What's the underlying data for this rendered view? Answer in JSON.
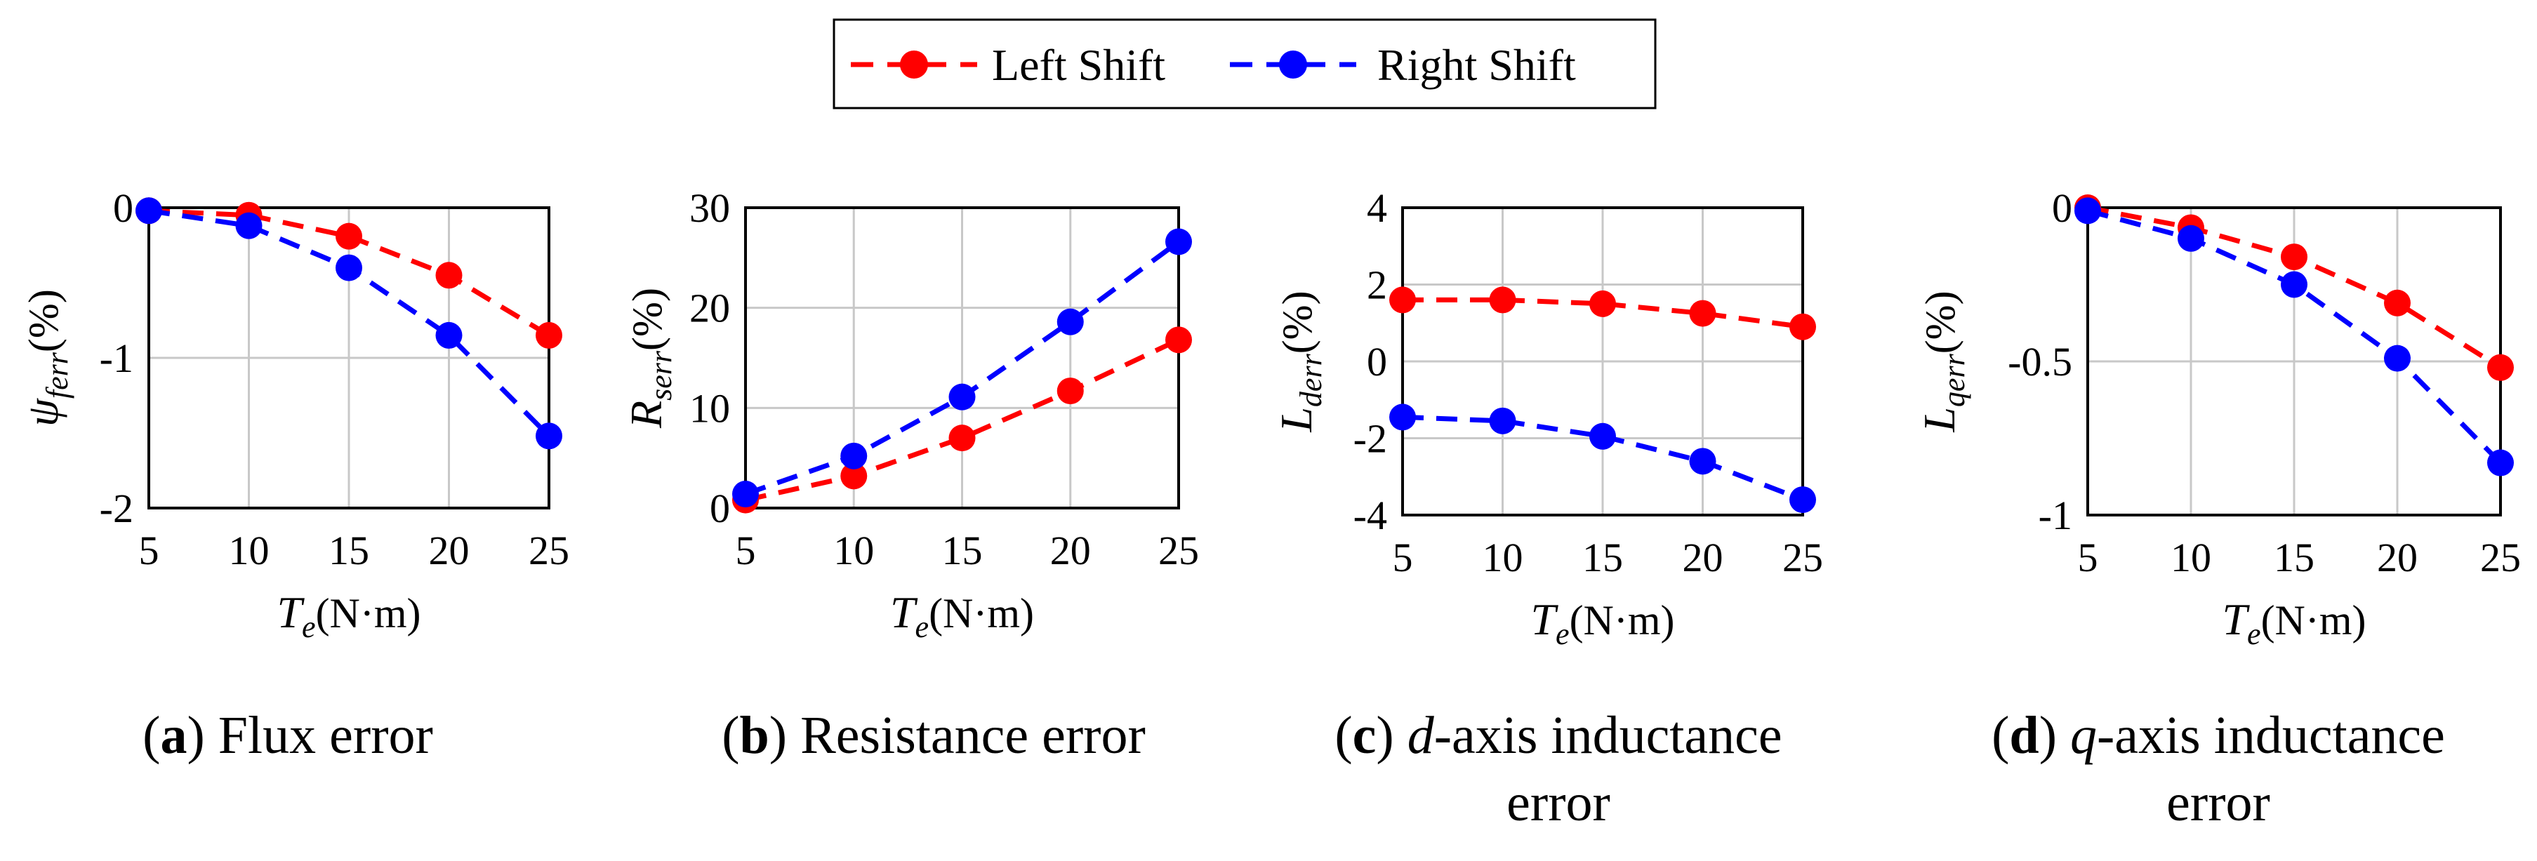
{
  "colors": {
    "left": "#ff0000",
    "right": "#0000ff",
    "grid": "#c8c8c8",
    "axis": "#000000"
  },
  "legend": {
    "left": "Left Shift",
    "right": "Right Shift"
  },
  "captions": [
    {
      "letter": "a",
      "pre": "",
      "ital": "",
      "text": "Flux error",
      "line2": ""
    },
    {
      "letter": "b",
      "pre": "",
      "ital": "",
      "text": "Resistance error",
      "line2": ""
    },
    {
      "letter": "c",
      "pre": "",
      "ital": "d",
      "text": "-axis inductance",
      "line2": "error"
    },
    {
      "letter": "d",
      "pre": "",
      "ital": "q",
      "text": "-axis inductance",
      "line2": "error"
    }
  ],
  "chart_data": [
    {
      "type": "line",
      "title": "Flux error",
      "xlabel_var": "T",
      "xlabel_sub": "e",
      "xlabel_unit": "(N·m)",
      "ylabel_var": "ψ",
      "ylabel_sub": "ferr",
      "ylabel_unit": "(%)",
      "x": [
        5,
        10,
        15,
        20,
        25
      ],
      "xticks": [
        "5",
        "10",
        "15",
        "20",
        "25"
      ],
      "ylim": [
        -2,
        0
      ],
      "yticks": [
        -2,
        -1,
        0
      ],
      "yticklabels": [
        "-2",
        "-1",
        "0"
      ],
      "series": [
        {
          "name": "Left Shift",
          "values": [
            -0.02,
            -0.05,
            -0.19,
            -0.45,
            -0.85
          ]
        },
        {
          "name": "Right Shift",
          "values": [
            -0.02,
            -0.12,
            -0.4,
            -0.85,
            -1.52
          ]
        }
      ]
    },
    {
      "type": "line",
      "title": "Resistance error",
      "xlabel_var": "T",
      "xlabel_sub": "e",
      "xlabel_unit": "(N·m)",
      "ylabel_var": "R",
      "ylabel_sub": "serr",
      "ylabel_unit": "(%)",
      "x": [
        5,
        10,
        15,
        20,
        25
      ],
      "xticks": [
        "5",
        "10",
        "15",
        "20",
        "25"
      ],
      "ylim": [
        0,
        30
      ],
      "yticks": [
        0,
        10,
        20,
        30
      ],
      "yticklabels": [
        "0",
        "10",
        "20",
        "30"
      ],
      "series": [
        {
          "name": "Left Shift",
          "values": [
            0.8,
            3.2,
            7.0,
            11.7,
            16.8
          ]
        },
        {
          "name": "Right Shift",
          "values": [
            1.4,
            5.2,
            11.1,
            18.6,
            26.6
          ]
        }
      ]
    },
    {
      "type": "line",
      "title": "d-axis inductance error",
      "xlabel_var": "T",
      "xlabel_sub": "e",
      "xlabel_unit": "(N·m)",
      "ylabel_var": "L",
      "ylabel_sub": "derr",
      "ylabel_unit": "(%)",
      "x": [
        5,
        10,
        15,
        20,
        25
      ],
      "xticks": [
        "5",
        "10",
        "15",
        "20",
        "25"
      ],
      "ylim": [
        -4,
        4
      ],
      "yticks": [
        -4,
        -2,
        0,
        2,
        4
      ],
      "yticklabels": [
        "-4",
        "-2",
        "0",
        "2",
        "4"
      ],
      "series": [
        {
          "name": "Left Shift",
          "values": [
            1.6,
            1.6,
            1.5,
            1.25,
            0.9
          ]
        },
        {
          "name": "Right Shift",
          "values": [
            -1.45,
            -1.55,
            -1.95,
            -2.6,
            -3.6
          ]
        }
      ]
    },
    {
      "type": "line",
      "title": "q-axis inductance error",
      "xlabel_var": "T",
      "xlabel_sub": "e",
      "xlabel_unit": "(N·m)",
      "ylabel_var": "L",
      "ylabel_sub": "qerr",
      "ylabel_unit": "(%)",
      "x": [
        5,
        10,
        15,
        20,
        25
      ],
      "xticks": [
        "5",
        "10",
        "15",
        "20",
        "25"
      ],
      "ylim": [
        -1,
        0
      ],
      "yticks": [
        -1,
        -0.5,
        0
      ],
      "yticklabels": [
        "-1",
        "-0.5",
        "0"
      ],
      "series": [
        {
          "name": "Left Shift",
          "values": [
            0.0,
            -0.065,
            -0.16,
            -0.31,
            -0.52
          ]
        },
        {
          "name": "Right Shift",
          "values": [
            -0.01,
            -0.1,
            -0.25,
            -0.49,
            -0.83
          ]
        }
      ]
    }
  ]
}
